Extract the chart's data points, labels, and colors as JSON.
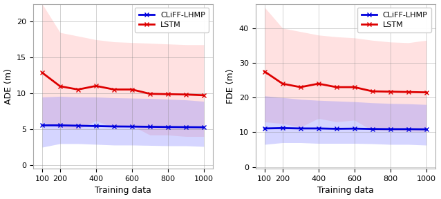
{
  "x": [
    100,
    200,
    300,
    400,
    500,
    600,
    700,
    800,
    900,
    1000
  ],
  "ade_blue_mean": [
    5.55,
    5.55,
    5.5,
    5.45,
    5.4,
    5.38,
    5.35,
    5.32,
    5.3,
    5.28
  ],
  "ade_blue_upper": [
    9.5,
    9.6,
    9.5,
    9.5,
    9.4,
    9.35,
    9.3,
    9.2,
    9.1,
    8.9
  ],
  "ade_blue_lower": [
    2.5,
    3.0,
    3.0,
    2.9,
    2.8,
    2.8,
    2.75,
    2.7,
    2.7,
    2.6
  ],
  "ade_red_mean": [
    12.9,
    11.0,
    10.55,
    11.05,
    10.55,
    10.55,
    9.95,
    9.9,
    9.85,
    9.75
  ],
  "ade_red_upper": [
    22.5,
    18.5,
    18.0,
    17.5,
    17.2,
    17.1,
    17.0,
    16.9,
    16.8,
    16.8
  ],
  "ade_red_lower": [
    6.0,
    5.2,
    5.0,
    6.2,
    5.2,
    5.5,
    4.2,
    4.2,
    4.0,
    4.0
  ],
  "fde_blue_mean": [
    11.1,
    11.2,
    11.1,
    11.1,
    11.0,
    11.05,
    10.95,
    10.9,
    10.9,
    10.85
  ],
  "fde_blue_upper": [
    20.5,
    20.0,
    19.5,
    19.2,
    19.0,
    18.8,
    18.5,
    18.3,
    18.2,
    18.0
  ],
  "fde_blue_lower": [
    6.5,
    7.0,
    7.0,
    6.8,
    6.8,
    6.8,
    6.7,
    6.5,
    6.5,
    6.3
  ],
  "fde_red_mean": [
    27.5,
    24.0,
    23.0,
    24.0,
    23.0,
    23.0,
    21.8,
    21.7,
    21.6,
    21.5
  ],
  "fde_red_upper": [
    46.0,
    40.0,
    39.0,
    38.0,
    37.5,
    37.2,
    36.5,
    36.0,
    35.8,
    36.5
  ],
  "fde_red_lower": [
    13.0,
    12.5,
    11.5,
    14.0,
    13.0,
    13.5,
    10.5,
    10.5,
    10.3,
    10.2
  ],
  "blue_color": "#0000dd",
  "red_color": "#dd0000",
  "blue_fill": "#8888ff",
  "red_fill": "#ffaaaa",
  "legend_label_blue": "CLiFF-LHMP",
  "legend_label_red": "LSTM",
  "xlabel": "Training data",
  "ylabel_left": "ADE (m)",
  "ylabel_right": "FDE (m)",
  "xticks": [
    100,
    200,
    400,
    600,
    800,
    1000
  ],
  "xlim": [
    50,
    1050
  ],
  "ade_ylim": [
    -0.5,
    22.5
  ],
  "ade_yticks": [
    0,
    5,
    10,
    15,
    20
  ],
  "fde_ylim": [
    -0.5,
    47
  ],
  "fde_yticks": [
    0,
    10,
    20,
    30,
    40
  ],
  "marker": "x",
  "markersize": 4,
  "linewidth": 2.0,
  "fill_alpha": 0.35
}
